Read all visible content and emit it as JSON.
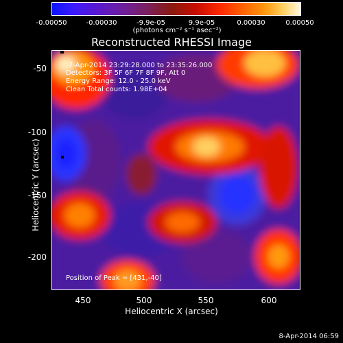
{
  "colorbar": {
    "ticks": [
      "-0.00050",
      "-0.00030",
      "-9.9e-05",
      "9.9e-05",
      "0.00030",
      "0.00050"
    ],
    "unit": "(photons cm⁻² s⁻¹ asec⁻²)"
  },
  "chart_data": {
    "type": "heatmap",
    "title": "Reconstructed RHESSI Image",
    "xlabel": "Heliocentric X (arcsec)",
    "ylabel": "Heliocentric Y (arcsec)",
    "xlim": [
      425,
      620
    ],
    "ylim": [
      -225,
      -35
    ],
    "xticks": [
      450,
      500,
      550,
      600
    ],
    "yticks": [
      -50,
      -100,
      -150,
      -200
    ],
    "color_range": [
      -0.0005,
      0.0005
    ],
    "peak": [
      431,
      -40
    ],
    "annotations": {
      "time": "7-Apr-2014 23:29:28.000 to 23:35:26.000",
      "detectors": "Detectors: 3F 5F 6F 7F 8F 9F, Att 0",
      "energy": "Energy Range: 12.0 - 25.0 keV",
      "clean": "Clean    Total counts: 1.98E+04",
      "peak_text": "Position of Peak = [431,-40]"
    }
  },
  "timestamp": "8-Apr-2014 06:59"
}
